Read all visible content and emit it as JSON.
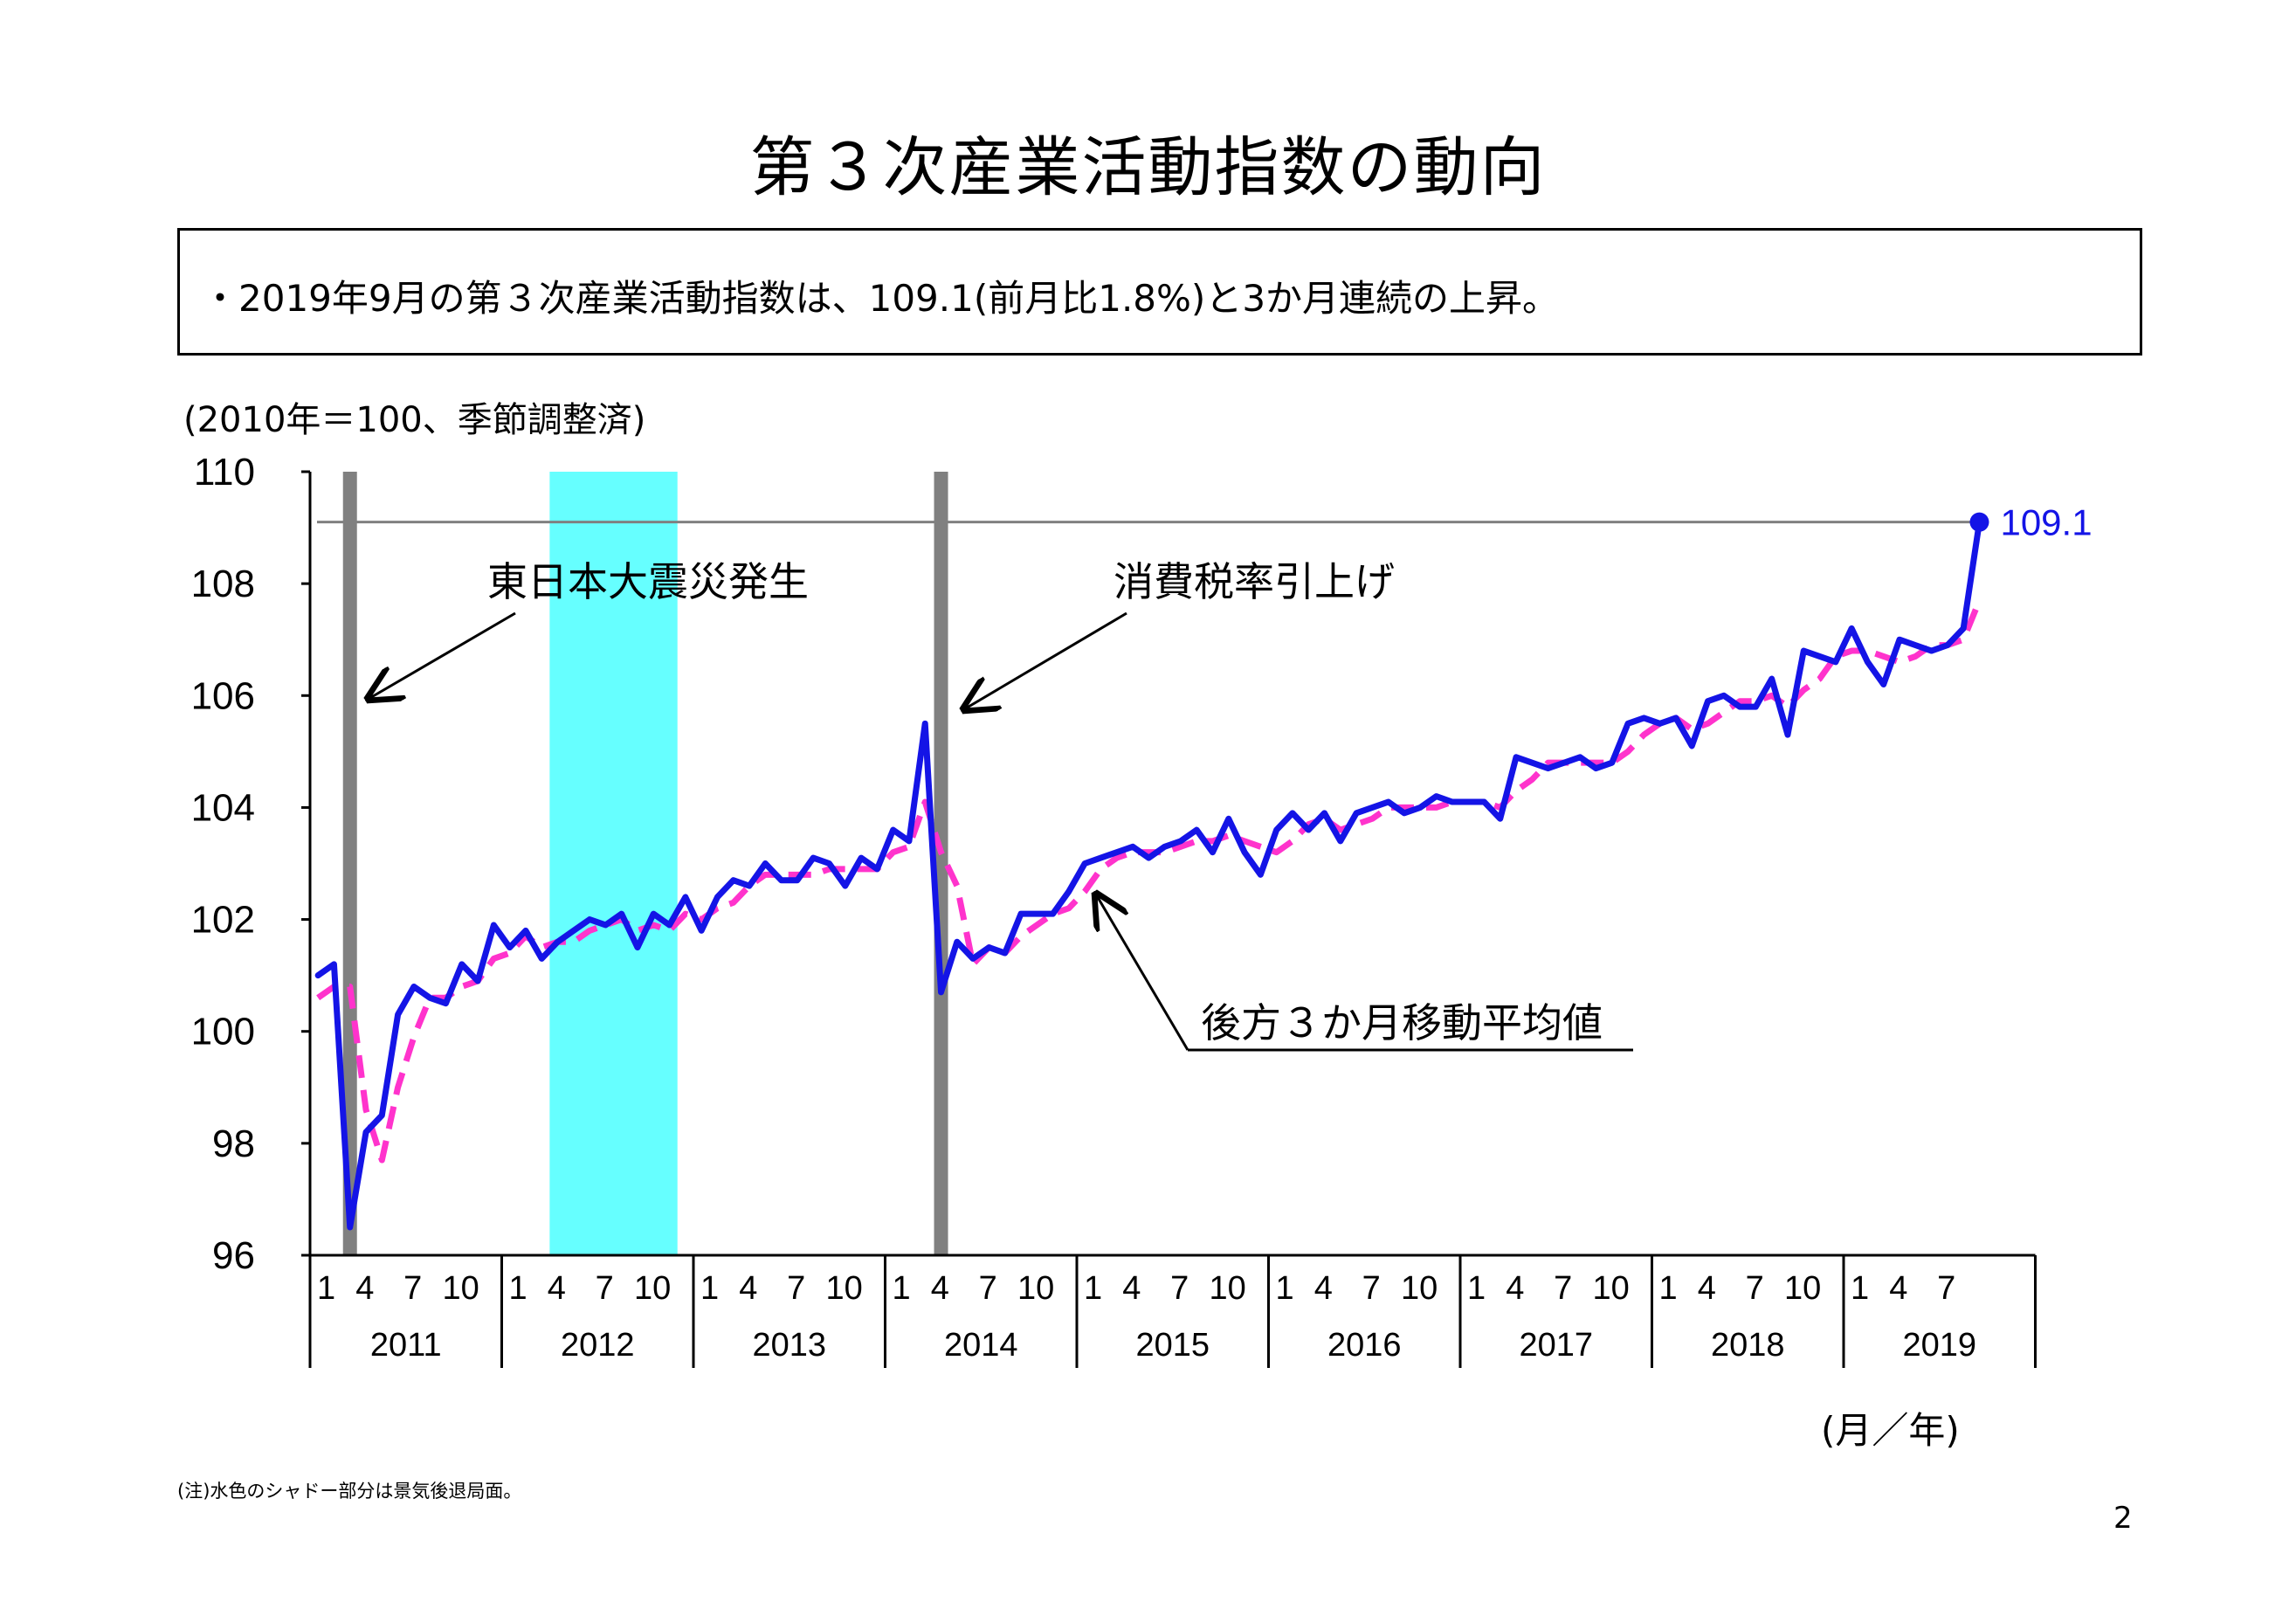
{
  "title": "第３次産業活動指数の動向",
  "summary": "・2019年9月の第３次産業活動指数は、109.1(前月比1.8%)と3か月連続の上昇。",
  "unit_label": "(2010年＝100、季節調整済)",
  "axis_unit": "(月／年)",
  "note": "(注)水色のシャドー部分は景気後退局面。",
  "page_number": "2",
  "colors": {
    "index_line": "#1414e6",
    "moving_average": "#ff33cc",
    "recession_shade": "#66ffff",
    "event_bar": "#808080",
    "reference_line": "#808080",
    "latest_label": "#1414e6"
  },
  "chart_data": {
    "type": "line",
    "title": "",
    "xlabel": "(月／年)",
    "ylabel": "(2010年＝100、季節調整済)",
    "ylim": [
      96,
      110
    ],
    "yticks": [
      96,
      98,
      100,
      102,
      104,
      106,
      108,
      110
    ],
    "x_month_ticks": [
      "1",
      "4",
      "7",
      "10"
    ],
    "years": [
      "2011",
      "2012",
      "2013",
      "2014",
      "2015",
      "2016",
      "2017",
      "2018",
      "2019"
    ],
    "start": "2011-01",
    "end": "2019-09",
    "series": [
      {
        "name": "",
        "values": [
          101.0,
          101.2,
          96.5,
          98.2,
          98.5,
          100.3,
          100.8,
          100.6,
          100.5,
          101.2,
          100.9,
          101.9,
          101.5,
          101.8,
          101.3,
          101.6,
          101.8,
          102.0,
          101.9,
          102.1,
          101.5,
          102.1,
          101.9,
          102.4,
          101.8,
          102.4,
          102.7,
          102.6,
          103.0,
          102.7,
          102.7,
          103.1,
          103.0,
          102.6,
          103.1,
          102.9,
          103.6,
          103.4,
          105.5,
          100.7,
          101.6,
          101.3,
          101.5,
          101.4,
          102.1,
          102.1,
          102.1,
          102.5,
          103.0,
          103.1,
          103.2,
          103.3,
          103.1,
          103.3,
          103.4,
          103.6,
          103.2,
          103.8,
          103.2,
          102.8,
          103.6,
          103.9,
          103.6,
          103.9,
          103.4,
          103.9,
          104.0,
          104.1,
          103.9,
          104.0,
          104.2,
          104.1,
          104.1,
          104.1,
          103.8,
          104.9,
          104.8,
          104.7,
          104.8,
          104.9,
          104.7,
          104.8,
          105.5,
          105.6,
          105.5,
          105.6,
          105.1,
          105.9,
          106.0,
          105.8,
          105.8,
          106.3,
          105.3,
          106.8,
          106.7,
          106.6,
          107.2,
          106.6,
          106.2,
          107.0,
          106.9,
          106.8,
          106.9,
          107.2,
          109.1
        ]
      },
      {
        "name": "後方３か月移動平均値",
        "values": [
          100.6,
          100.8,
          100.8,
          98.6,
          97.7,
          99.0,
          99.9,
          100.6,
          100.6,
          100.8,
          100.9,
          101.3,
          101.4,
          101.7,
          101.5,
          101.6,
          101.6,
          101.8,
          101.9,
          102.0,
          101.8,
          101.9,
          101.8,
          102.1,
          102.0,
          102.2,
          102.3,
          102.6,
          102.8,
          102.8,
          102.8,
          102.8,
          102.9,
          102.9,
          102.9,
          102.9,
          103.2,
          103.3,
          104.1,
          103.2,
          102.6,
          101.2,
          101.5,
          101.4,
          101.7,
          101.9,
          102.1,
          102.2,
          102.5,
          102.9,
          103.1,
          103.2,
          103.2,
          103.2,
          103.3,
          103.4,
          103.4,
          103.5,
          103.4,
          103.3,
          103.2,
          103.4,
          103.7,
          103.8,
          103.6,
          103.7,
          103.8,
          104.0,
          104.0,
          104.0,
          104.0,
          104.1,
          104.1,
          104.1,
          104.0,
          104.3,
          104.5,
          104.8,
          104.8,
          104.8,
          104.8,
          104.8,
          105.0,
          105.3,
          105.5,
          105.6,
          105.4,
          105.5,
          105.7,
          105.9,
          105.9,
          106.0,
          105.8,
          106.1,
          106.3,
          106.7,
          106.8,
          106.8,
          106.7,
          106.6,
          106.7,
          106.9,
          106.9,
          107.0,
          107.7
        ]
      }
    ],
    "recession_shade": {
      "start": "2012-04",
      "end": "2012-11"
    },
    "event_markers": [
      {
        "label": "東日本大震災発生",
        "date": "2011-03"
      },
      {
        "label": "消費税率引上げ",
        "date": "2014-04"
      }
    ],
    "reference_line": {
      "value": 109.1
    },
    "latest_point": {
      "date": "2019-09",
      "value": 109.1,
      "label": "109.1"
    },
    "ma_label": "後方３か月移動平均値"
  }
}
